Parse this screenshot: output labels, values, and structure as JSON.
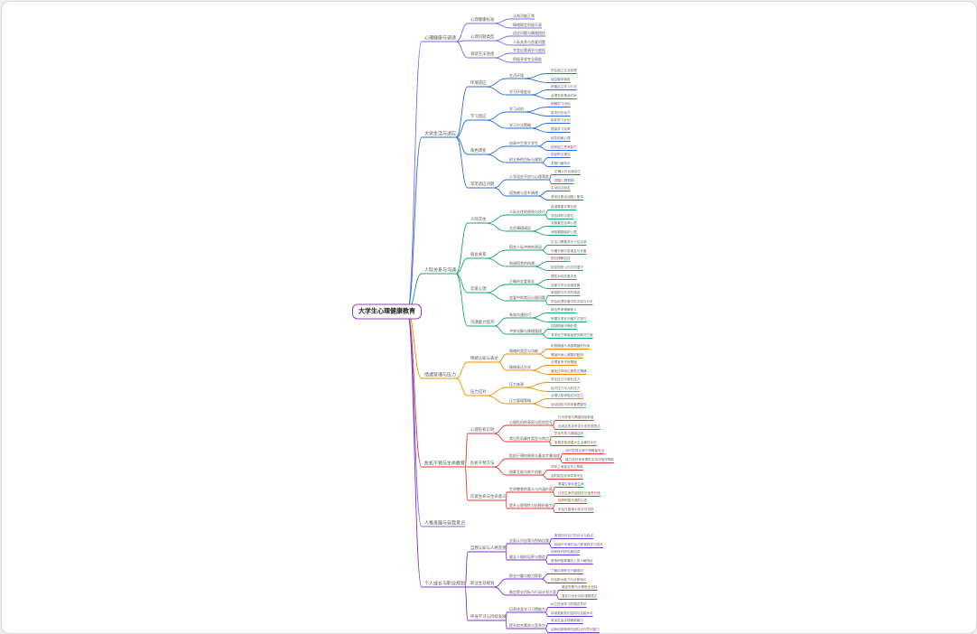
{
  "root": {
    "label": "大学生心理健康教育"
  },
  "branches": [
    {
      "label": "心理健康与调适",
      "color": "#7b68ee",
      "children": [
        {
          "label": "心理健康标准",
          "children": [
            {
              "label": "认知功能正常",
              "children": []
            },
            {
              "label": "情绪稳定积极乐观",
              "children": []
            }
          ]
        },
        {
          "label": "心理问题类型",
          "children": [
            {
              "label": "适应问题与情绪困扰",
              "children": []
            },
            {
              "label": "人际关系与恋爱问题",
              "children": []
            }
          ]
        },
        {
          "label": "调适方法途径",
          "children": [
            {
              "label": "学会自我调节与放松",
              "children": []
            },
            {
              "label": "积极寻求专业帮助",
              "children": []
            }
          ]
        }
      ]
    },
    {
      "label": "大学生活与适应",
      "color": "#2b6fd6",
      "children": [
        {
          "label": "环境适应",
          "children": [
            {
              "label": "生活环境",
              "children": [
                {
                  "label": "学会独立生活自理"
                },
                {
                  "label": "适应集体宿舍"
                }
              ]
            },
            {
              "label": "学习环境变化",
              "children": [
                {
                  "label": "掌握自主学习方法"
                },
                {
                  "label": "合理安排课余时间"
                }
              ]
            }
          ]
        },
        {
          "label": "学习适应",
          "children": [
            {
              "label": "学习动机",
              "children": [
                {
                  "label": "明确学习目标"
                },
                {
                  "label": "激发内在动力"
                }
              ]
            },
            {
              "label": "学习方法策略",
              "children": [
                {
                  "label": "制定学习计划"
                },
                {
                  "label": "提高学习效率"
                }
              ]
            }
          ]
        },
        {
          "label": "角色转变",
          "children": [
            {
              "label": "由高中生到大学生",
              "children": [
                {
                  "label": "转变依赖心理"
                },
                {
                  "label": "培养独立思考能力"
                }
              ]
            },
            {
              "label": "树立新的目标与规划",
              "children": [
                {
                  "label": "制定职业规划"
                },
                {
                  "label": "发展兴趣特长"
                }
              ]
            }
          ]
        },
        {
          "label": "常见适应问题",
          "children": [
            {
              "label": "入学适应不良与心理落差",
              "children": [
                {
                  "label": "正确认识自我定位"
                },
                {
                  "label": "调整心理预期"
                }
              ]
            },
            {
              "label": "孤独感与思乡情绪",
              "children": [
                {
                  "label": "主动结交朋友"
                },
                {
                  "label": "参加社团活动融入集体"
                }
              ]
            }
          ]
        }
      ]
    },
    {
      "label": "人际关系与沟通",
      "color": "#1aa37a",
      "children": [
        {
          "label": "人际交往",
          "children": [
            {
              "label": "人际交往的原则与技巧",
              "children": [
                {
                  "label": "真诚尊重平等互助"
                },
                {
                  "label": "学会倾听与表达"
                }
              ]
            },
            {
              "label": "交往障碍调适",
              "children": [
                {
                  "label": "克服羞怯自卑心理"
                },
                {
                  "label": "消除猜疑嫉妒心理"
                }
              ]
            }
          ]
        },
        {
          "label": "宿舍关系",
          "children": [
            {
              "label": "宿舍人际冲突的原因",
              "children": [
                {
                  "label": "生活习惯差异与个性冲突"
                },
                {
                  "label": "沟通不畅引发误会与矛盾"
                }
              ]
            },
            {
              "label": "和谐宿舍的构建",
              "children": [
                {
                  "label": "相互理解包容"
                },
                {
                  "label": "制定宿舍公约共同遵守"
                }
              ]
            }
          ]
        },
        {
          "label": "恋爱心理",
          "children": [
            {
              "label": "正确的恋爱观念",
              "children": [
                {
                  "label": "理性对待恋爱关系"
                },
                {
                  "label": "恋爱与学业协调发展"
                }
              ]
            },
            {
              "label": "恋爱中的常见心理问题",
              "children": [
                {
                  "label": "单相思与失恋的调适"
                },
                {
                  "label": "学会处理恋爱中的冲突与分手"
                }
              ]
            }
          ]
        },
        {
          "label": "沟通能力提升",
          "children": [
            {
              "label": "有效沟通技巧",
              "children": [
                {
                  "label": "换位思考理解他人"
                },
                {
                  "label": "掌握非语言沟通方式技巧"
                }
              ]
            },
            {
              "label": "冲突化解与情绪管理",
              "children": [
                {
                  "label": "控制情绪冷静处理"
                },
                {
                  "label": "寻求双方都能接受的解决方案"
                }
              ]
            }
          ]
        }
      ]
    },
    {
      "label": "情绪管理与压力",
      "color": "#f08c00",
      "children": [
        {
          "label": "情绪认知与表达",
          "children": [
            {
              "label": "情绪的类型与功能",
              "children": [
                {
                  "label": "积极情绪与消极情绪的作用"
                },
                {
                  "label": "情绪对身心健康的影响"
                }
              ]
            },
            {
              "label": "情绪表达方式",
              "children": [
                {
                  "label": "合理宣泄不良情绪"
                },
                {
                  "label": "避免压抑或过度表达情绪"
                }
              ]
            }
          ]
        },
        {
          "label": "压力应对",
          "children": [
            {
              "label": "压力来源",
              "children": [
                {
                  "label": "学业压力与就业压力"
                },
                {
                  "label": "经济压力与人际压力"
                }
              ]
            },
            {
              "label": "压力管理策略",
              "children": [
                {
                  "label": "合理认知积极应对压力"
                },
                {
                  "label": "运动放松与时间管理调节"
                }
              ]
            }
          ]
        }
      ]
    },
    {
      "label": "危机干预与生命教育",
      "color": "#e03a2c",
      "children": [
        {
          "label": "心理危机识别",
          "children": [
            {
              "label": "心理危机的表现与危险信号",
              "children": [
                {
                  "label": "行为异常与情绪持续低落"
                },
                {
                  "label": "出现自伤自杀念头或言语表达"
                }
              ]
            },
            {
              "label": "常见危机事件类型与特点",
              "children": [
                {
                  "label": "学业失败与情感挫折"
                },
                {
                  "label": "家庭变故或重大生活事件冲击"
                }
              ]
            }
          ]
        },
        {
          "label": "危机干预方法",
          "children": [
            {
              "label": "危机干预的原则与基本步骤流程",
              "children": [
                {
                  "label": "及时发现迅速干预确保安全"
                },
                {
                  "label": "建立信任关系提供支持与陪伴帮助"
                }
              ]
            },
            {
              "label": "朋辈互助与转介机制",
              "children": [
                {
                  "label": "同学之间相互关心帮助"
                },
                {
                  "label": "及时报告老师寻求专业"
                }
              ]
            }
          ]
        },
        {
          "label": "珍爱生命与生命意义",
          "children": [
            {
              "label": "生命教育的意义与内涵价值",
              "children": [
                {
                  "label": "尊重生命珍爱生命"
                },
                {
                  "label": "认识生命的独特性与宝贵价值"
                }
              ]
            },
            {
              "label": "提升心理韧性与抗挫折能力",
              "children": [
                {
                  "label": "培养积极乐观的心态"
                },
                {
                  "label": "学会在困难中成长与坚持"
                }
              ]
            }
          ]
        }
      ]
    },
    {
      "label": "人格发展与自我意识",
      "color": "#7b68ee",
      "children": []
    },
    {
      "label": "个人成长与职业规划",
      "color": "#7b2fd6",
      "children": [
        {
          "label": "自我认知与人格完善",
          "children": [
            {
              "label": "全面认识自我与悦纳自我",
              "children": [
                {
                  "label": "客观评价自己的优点与缺点"
                },
                {
                  "label": "接纳不完美的自己积极改变与成长"
                }
              ]
            },
            {
              "label": "健全人格的培养与塑造",
              "children": [
                {
                  "label": "培养良好的性格品质"
                },
                {
                  "label": "塑造积极健康向上的人格特征"
                }
              ]
            }
          ]
        },
        {
          "label": "职业生涯规划",
          "children": [
            {
              "label": "职业兴趣与能力探索",
              "children": [
                {
                  "label": "了解自身职业兴趣倾向"
                },
                {
                  "label": "评估职业能力与优势特长"
                }
              ]
            },
            {
              "label": "制定职业目标与行动计划方案",
              "children": [
                {
                  "label": "确定短期与长期职业目标"
                },
                {
                  "label": "落实行动计划并调整修正"
                }
              ]
            }
          ]
        },
        {
          "label": "终身学习与持续发展",
          "children": [
            {
              "label": "培养终身学习习惯能力",
              "children": [
                {
                  "label": "树立终身学习的理念意识"
                },
                {
                  "label": "持续更新知识结构与技能水平"
                }
              ]
            },
            {
              "label": "提升综合素质与竞争力",
              "children": [
                {
                  "label": "参加社会实践锻炼能力"
                },
                {
                  "label": "培养创新精神与团队合作意识能力"
                }
              ]
            }
          ]
        }
      ]
    }
  ]
}
